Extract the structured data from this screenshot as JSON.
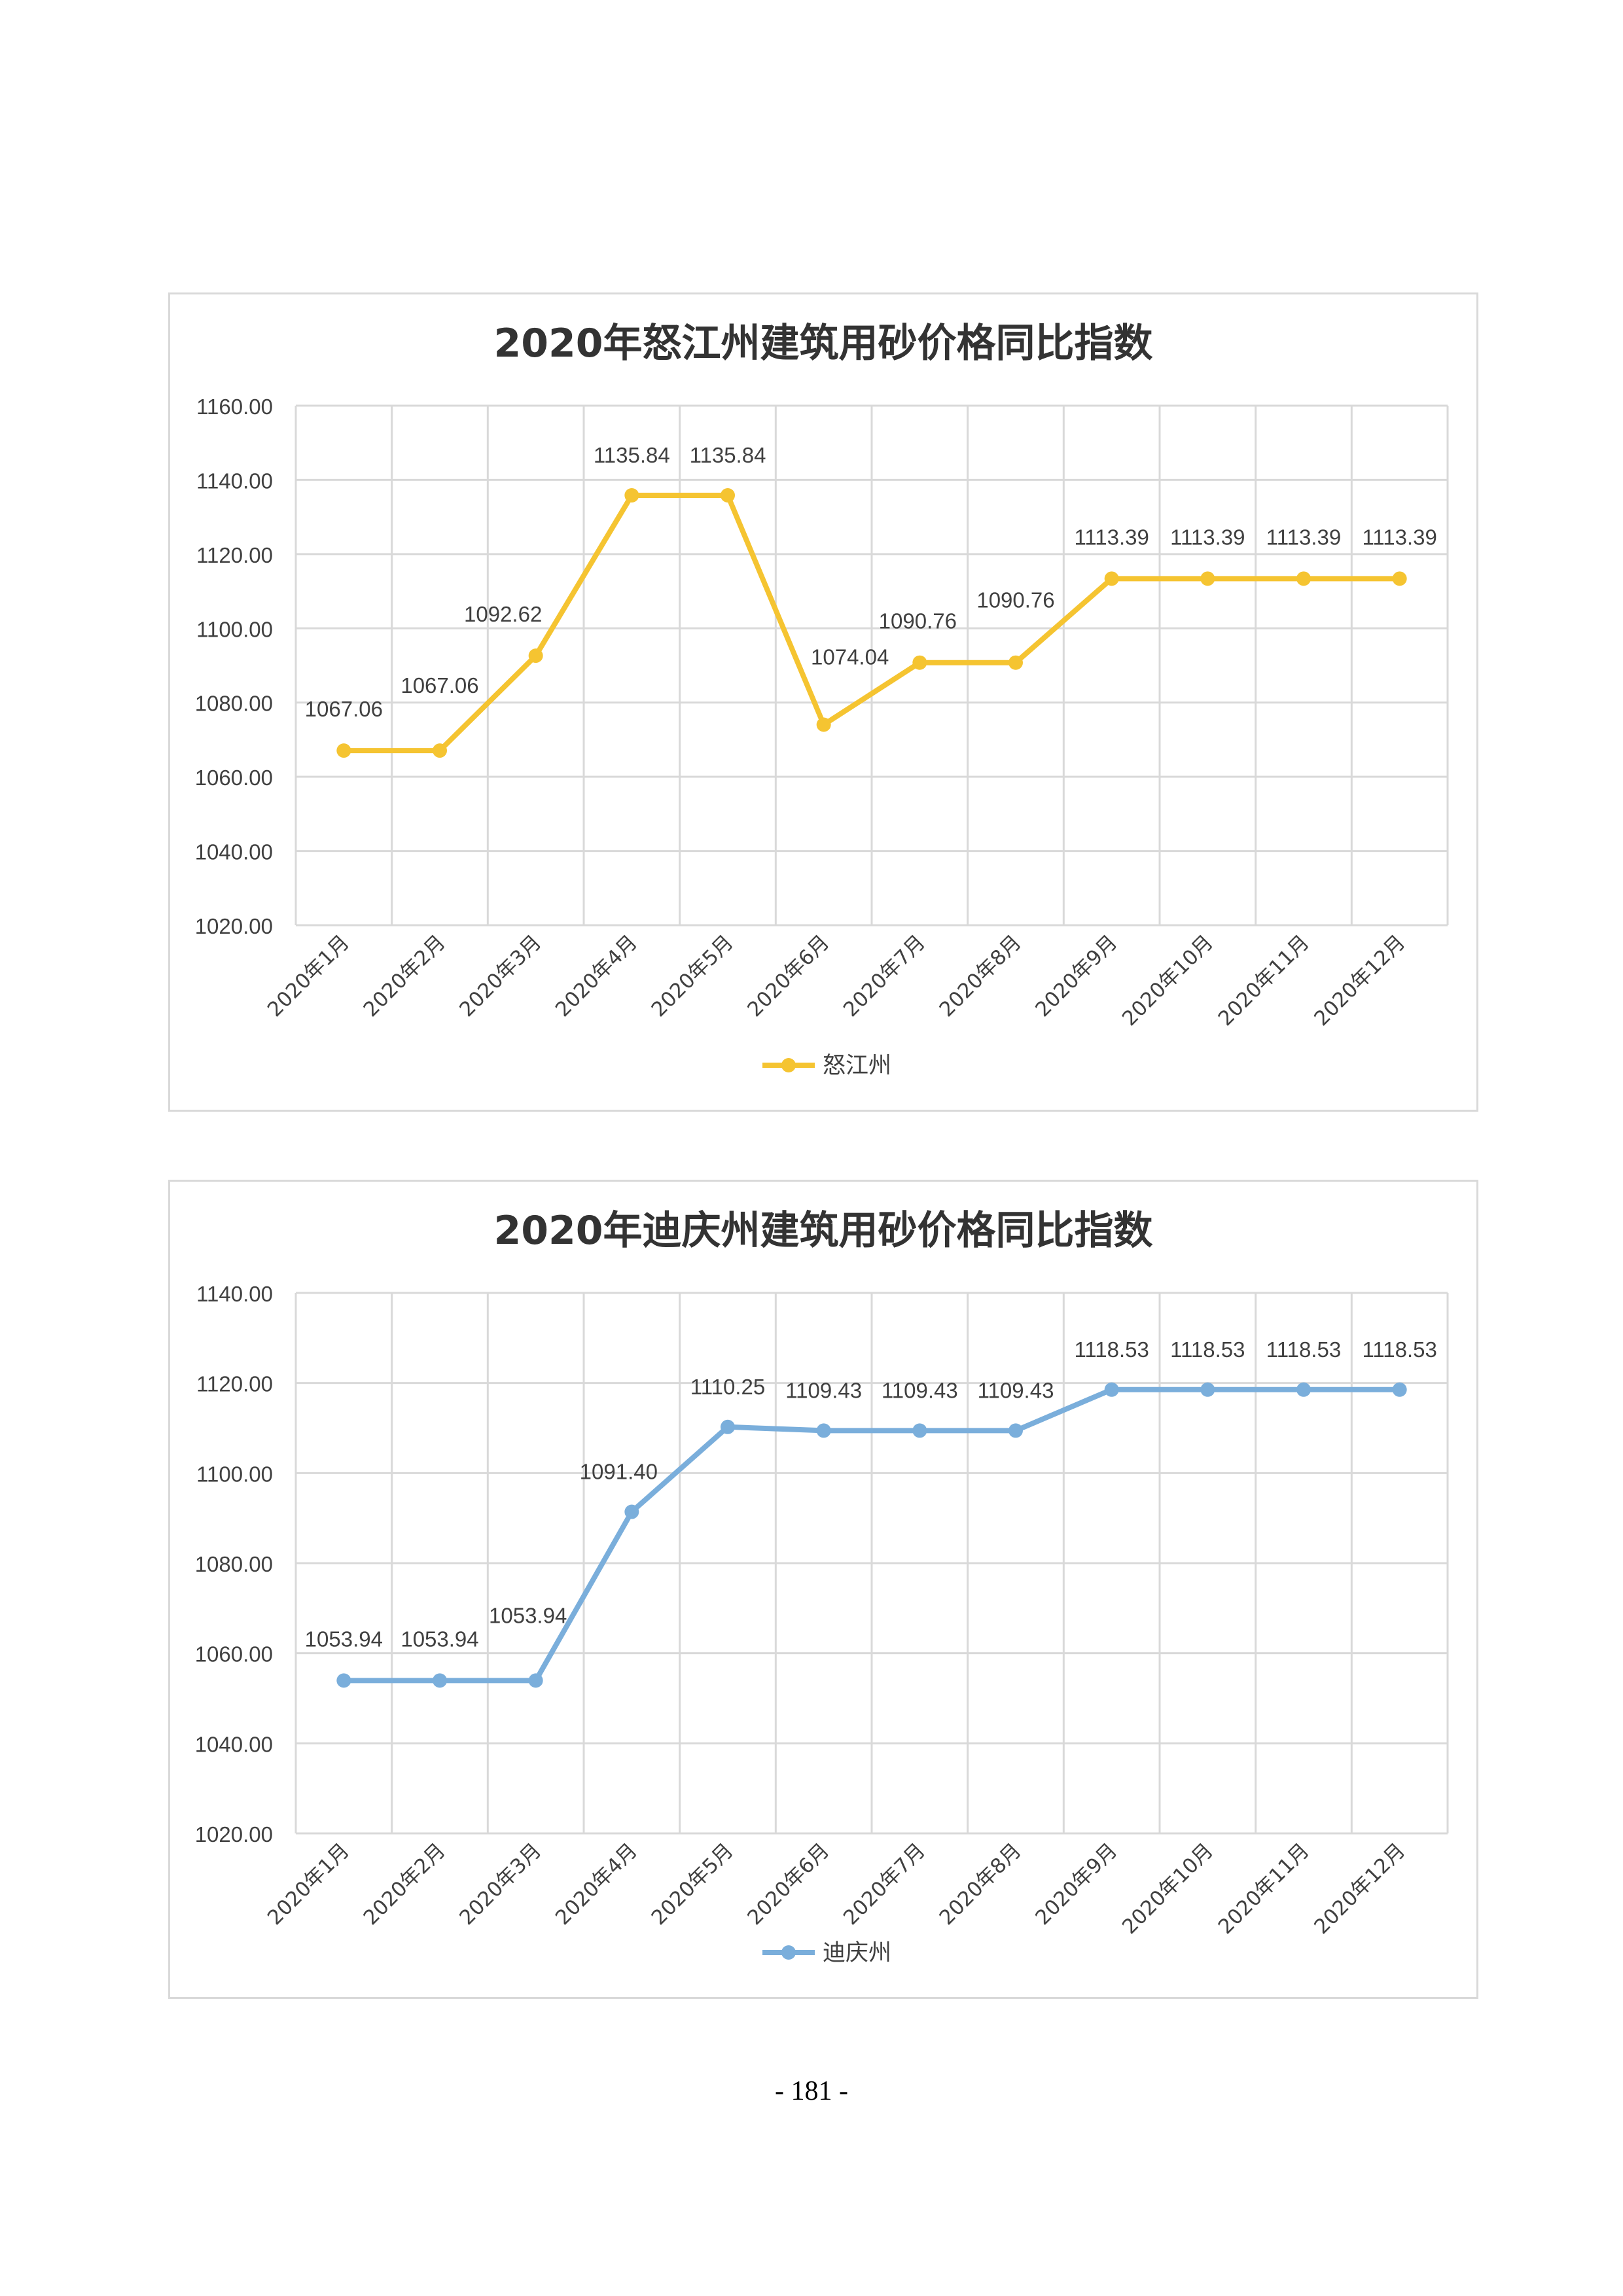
{
  "page": {
    "number": "- 181 -"
  },
  "chart_data": [
    {
      "type": "line",
      "title": "2020年怒江州建筑用砂价格同比指数",
      "xlabel": "",
      "ylabel": "",
      "categories": [
        "2020年1月",
        "2020年2月",
        "2020年3月",
        "2020年4月",
        "2020年5月",
        "2020年6月",
        "2020年7月",
        "2020年8月",
        "2020年9月",
        "2020年10月",
        "2020年11月",
        "2020年12月"
      ],
      "series": [
        {
          "name": "怒江州",
          "color": "#f5c431",
          "values": [
            1067.06,
            1067.06,
            1092.62,
            1135.84,
            1135.84,
            1074.04,
            1090.76,
            1090.76,
            1113.39,
            1113.39,
            1113.39,
            1113.39
          ],
          "labels": [
            "1067.06",
            "1067.06",
            "1092.62",
            "1135.84",
            "1135.84",
            "1074.04",
            "1090.76",
            "1090.76",
            "1113.39",
            "1113.39",
            "1113.39",
            "1113.39"
          ]
        }
      ],
      "ylim": [
        1020,
        1160
      ],
      "yticks": [
        1020,
        1040,
        1060,
        1080,
        1100,
        1120,
        1140,
        1160
      ],
      "ytick_labels": [
        "1020.00",
        "1040.00",
        "1060.00",
        "1080.00",
        "1100.00",
        "1120.00",
        "1140.00",
        "1160.00"
      ],
      "grid": true,
      "legend": "bottom"
    },
    {
      "type": "line",
      "title": "2020年迪庆州建筑用砂价格同比指数",
      "xlabel": "",
      "ylabel": "",
      "categories": [
        "2020年1月",
        "2020年2月",
        "2020年3月",
        "2020年4月",
        "2020年5月",
        "2020年6月",
        "2020年7月",
        "2020年8月",
        "2020年9月",
        "2020年10月",
        "2020年11月",
        "2020年12月"
      ],
      "series": [
        {
          "name": "迪庆州",
          "color": "#7aaedb",
          "values": [
            1053.94,
            1053.94,
            1053.94,
            1091.4,
            1110.25,
            1109.43,
            1109.43,
            1109.43,
            1118.53,
            1118.53,
            1118.53,
            1118.53
          ],
          "labels": [
            "1053.94",
            "1053.94",
            "1053.94",
            "1091.40",
            "1110.25",
            "1109.43",
            "1109.43",
            "1109.43",
            "1118.53",
            "1118.53",
            "1118.53",
            "1118.53"
          ]
        }
      ],
      "ylim": [
        1020,
        1140
      ],
      "yticks": [
        1020,
        1040,
        1060,
        1080,
        1100,
        1120,
        1140
      ],
      "ytick_labels": [
        "1020.00",
        "1040.00",
        "1060.00",
        "1080.00",
        "1100.00",
        "1120.00",
        "1140.00"
      ],
      "grid": true,
      "legend": "bottom"
    }
  ]
}
